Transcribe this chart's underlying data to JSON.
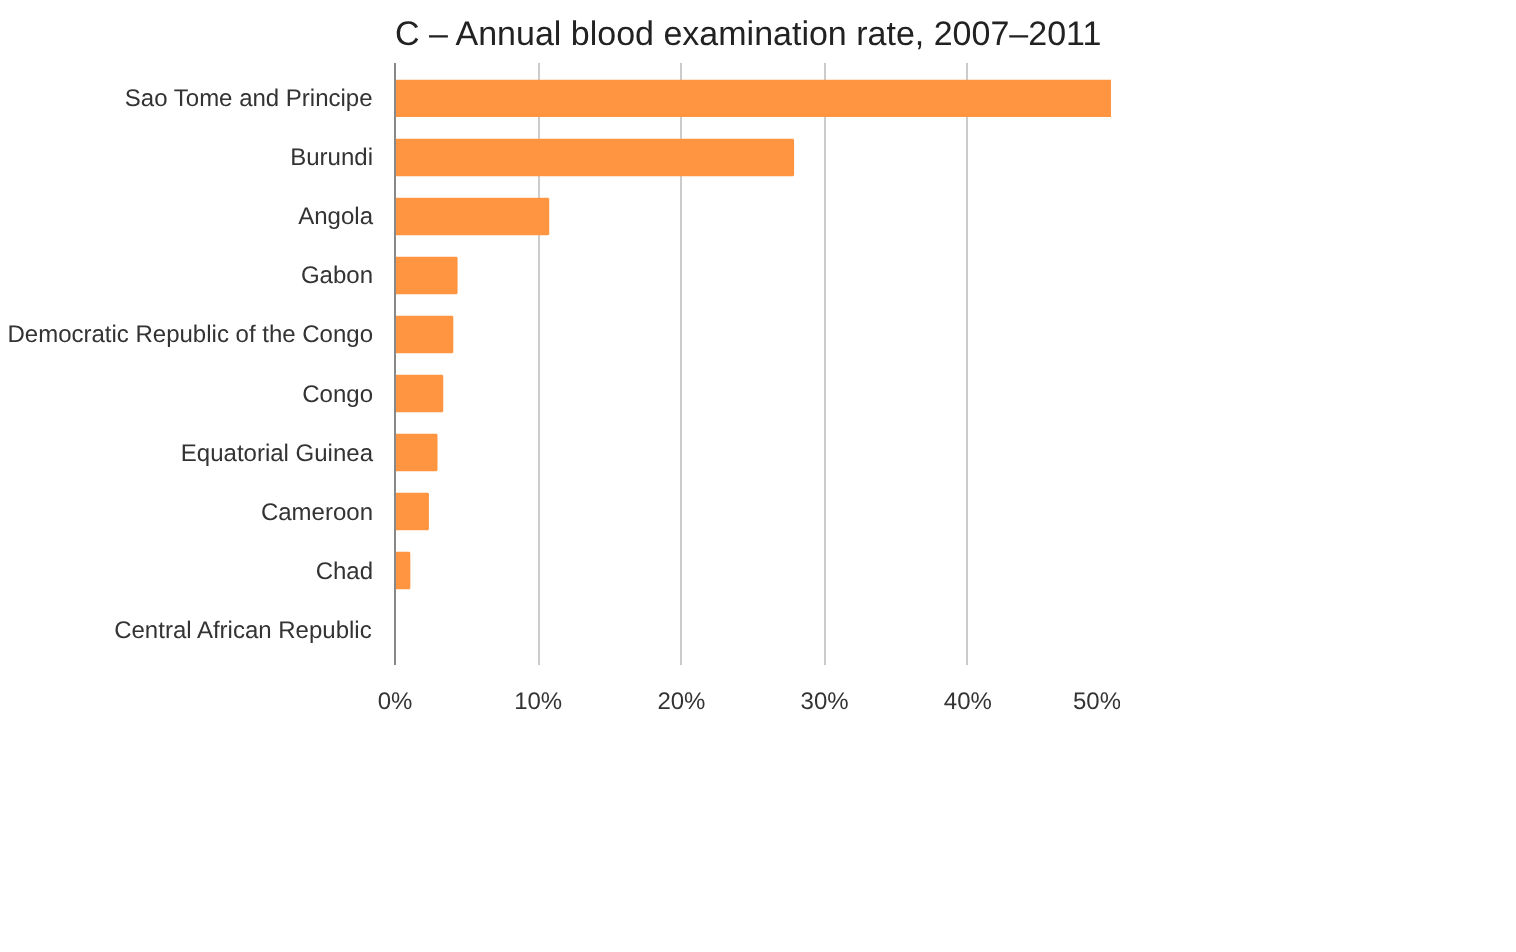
{
  "chart_data": {
    "type": "bar",
    "orientation": "horizontal",
    "title": "C – Annual blood examination rate, 2007–2011",
    "categories": [
      "Sao Tome and Principe",
      "Burundi",
      "Angola",
      "Gabon",
      "Democratic Republic of the Congo",
      "Congo",
      "Equatorial Guinea",
      "Cameroon",
      "Chad",
      "Central African Republic"
    ],
    "values": [
      50,
      27.8,
      10.7,
      4.3,
      4.0,
      3.3,
      2.9,
      2.3,
      1.0,
      0
    ],
    "color": "#ff9540",
    "xlim": [
      0,
      50
    ],
    "xticks": [
      {
        "value": 0,
        "label": "0%"
      },
      {
        "value": 10,
        "label": "10%"
      },
      {
        "value": 20,
        "label": "20%"
      },
      {
        "value": 30,
        "label": "30%"
      },
      {
        "value": 40,
        "label": "40%"
      },
      {
        "value": 50,
        "label": "50%"
      }
    ],
    "grid": "x"
  }
}
